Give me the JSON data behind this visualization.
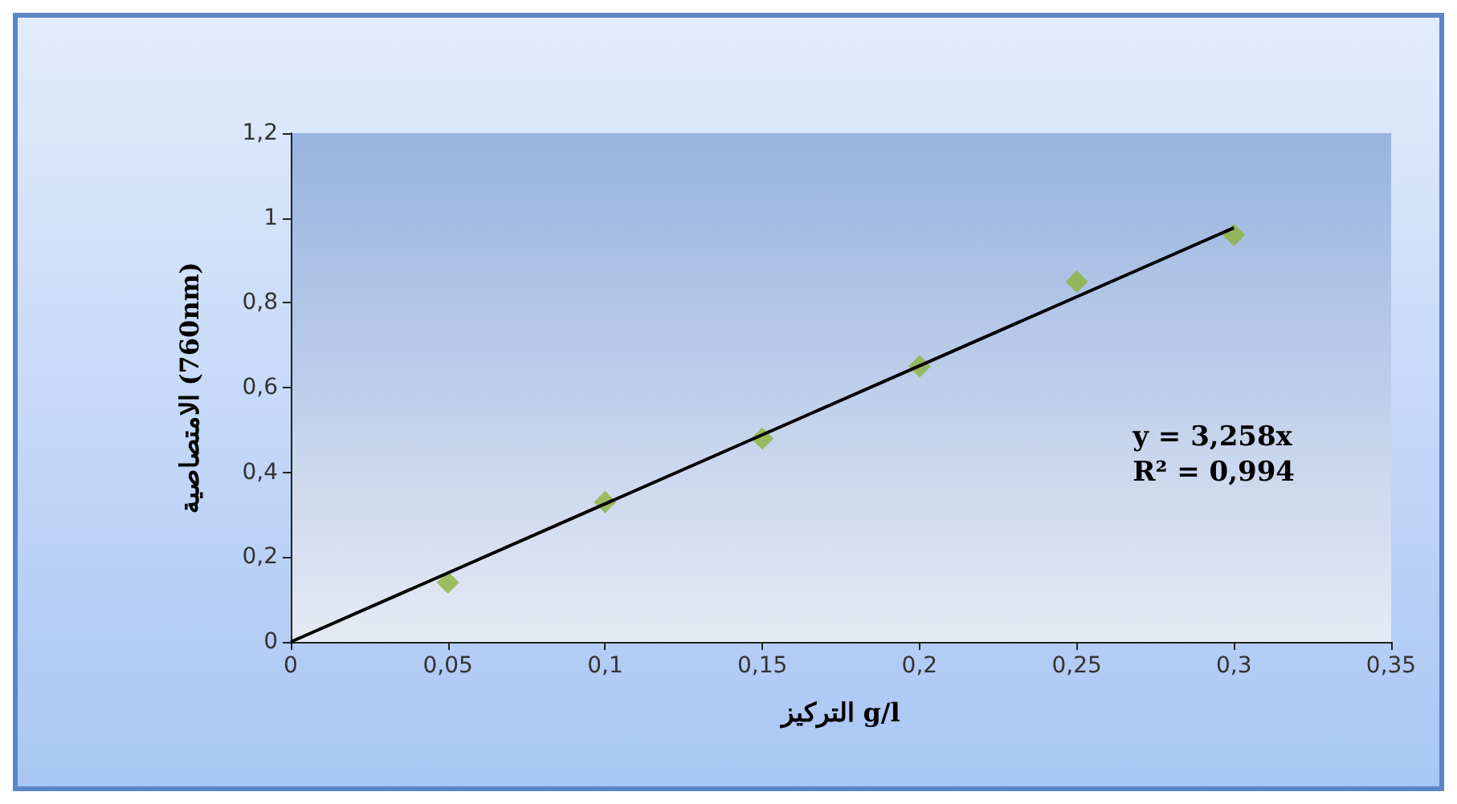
{
  "chart_data": {
    "type": "scatter",
    "xlabel": "التركيز g/l",
    "ylabel": "الامتصاصية (760nm)",
    "series": [
      {
        "color": "#8db33a",
        "marker": "diamond",
        "x": [
          0.05,
          0.1,
          0.15,
          0.2,
          0.25,
          0.3
        ],
        "values": [
          0.14,
          0.33,
          0.48,
          0.65,
          0.85,
          0.96
        ]
      },
      {
        "type": "line",
        "color": "#000000",
        "marker": "none",
        "line_style": "solid",
        "x": [
          0,
          0.3
        ],
        "values": [
          0,
          0.977
        ]
      }
    ],
    "xlim": [
      0,
      0.35
    ],
    "xticks": [
      0,
      {
        "value": 0.05,
        "label": "0,05"
      },
      {
        "value": 0.1,
        "label": "0,1"
      },
      {
        "value": 0.15,
        "label": "0,15"
      },
      {
        "value": 0.2,
        "label": "0,2"
      },
      {
        "value": 0.25,
        "label": "0,25"
      },
      {
        "value": 0.3,
        "label": "0,3"
      },
      {
        "value": 0.35,
        "label": "0,35"
      }
    ],
    "ylim": [
      0,
      1.2
    ],
    "yticks": [
      0,
      {
        "value": 0.2,
        "label": "0,2"
      },
      {
        "value": 0.4,
        "label": "0,4"
      },
      {
        "value": 0.6,
        "label": "0,6"
      },
      {
        "value": 0.8,
        "label": "0,8"
      },
      1,
      {
        "value": 1.2,
        "label": "1,2"
      }
    ],
    "grid": false,
    "annotations": [
      "y = 3,258x",
      "R² = 0,994"
    ]
  }
}
